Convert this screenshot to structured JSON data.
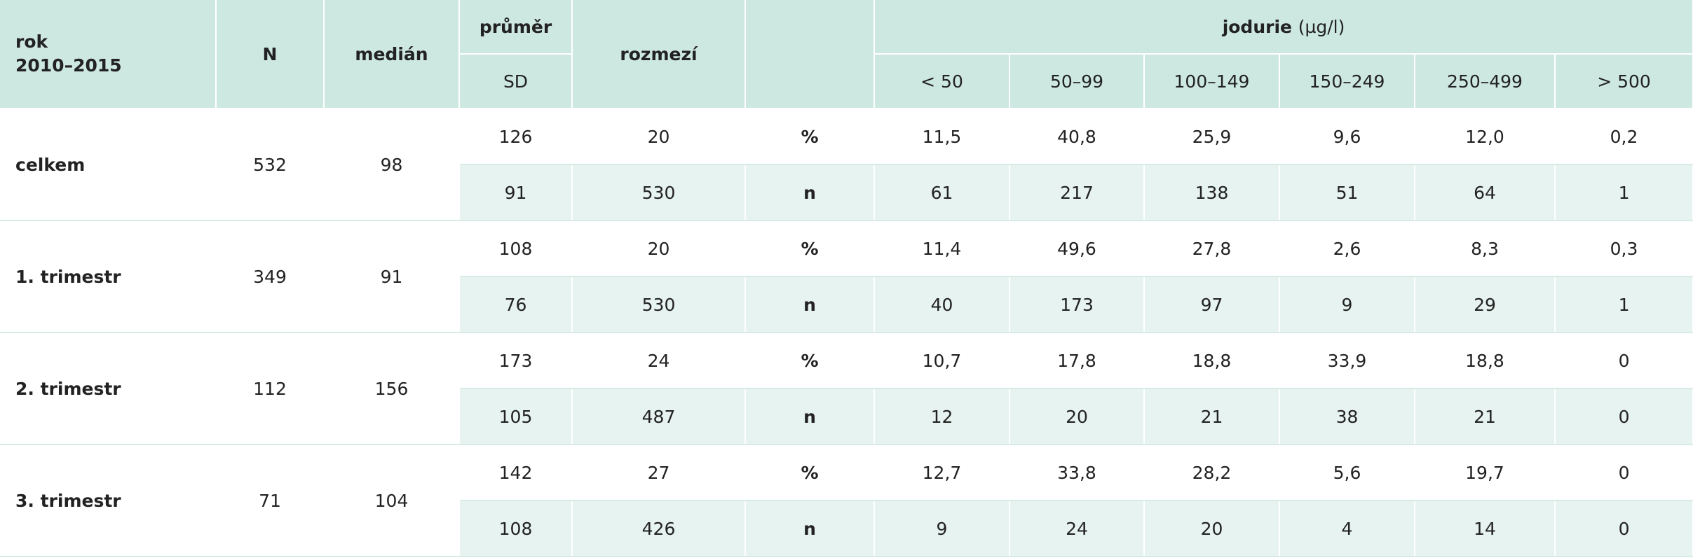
{
  "header": {
    "rok": "rok",
    "period": "2010–2015",
    "N": "N",
    "median": "medián",
    "mean": "průměr",
    "sd": "SD",
    "range": "rozmezí",
    "iodine": "jodurie",
    "unit": "(µg/l)",
    "bins": [
      "< 50",
      "50–99",
      "100–149",
      "150–249",
      "250–499",
      "> 500"
    ]
  },
  "groups": [
    {
      "label": "celkem",
      "N": "532",
      "median": "98",
      "rows": [
        [
          "126",
          "20",
          "%",
          "11,5",
          "40,8",
          "25,9",
          "9,6",
          "12,0",
          "0,2"
        ],
        [
          "91",
          "530",
          "n",
          "61",
          "217",
          "138",
          "51",
          "64",
          "1"
        ]
      ]
    },
    {
      "label": "1. trimestr",
      "N": "349",
      "median": "91",
      "rows": [
        [
          "108",
          "20",
          "%",
          "11,4",
          "49,6",
          "27,8",
          "2,6",
          "8,3",
          "0,3"
        ],
        [
          "76",
          "530",
          "n",
          "40",
          "173",
          "97",
          "9",
          "29",
          "1"
        ]
      ]
    },
    {
      "label": "2. trimestr",
      "N": "112",
      "median": "156",
      "rows": [
        [
          "173",
          "24",
          "%",
          "10,7",
          "17,8",
          "18,8",
          "33,9",
          "18,8",
          "0"
        ],
        [
          "105",
          "487",
          "n",
          "12",
          "20",
          "21",
          "38",
          "21",
          "0"
        ]
      ]
    },
    {
      "label": "3. trimestr",
      "N": "71",
      "median": "104",
      "rows": [
        [
          "142",
          "27",
          "%",
          "12,7",
          "33,8",
          "28,2",
          "5,6",
          "19,7",
          "0"
        ],
        [
          "108",
          "426",
          "n",
          "9",
          "24",
          "20",
          "4",
          "14",
          "0"
        ]
      ]
    }
  ]
}
